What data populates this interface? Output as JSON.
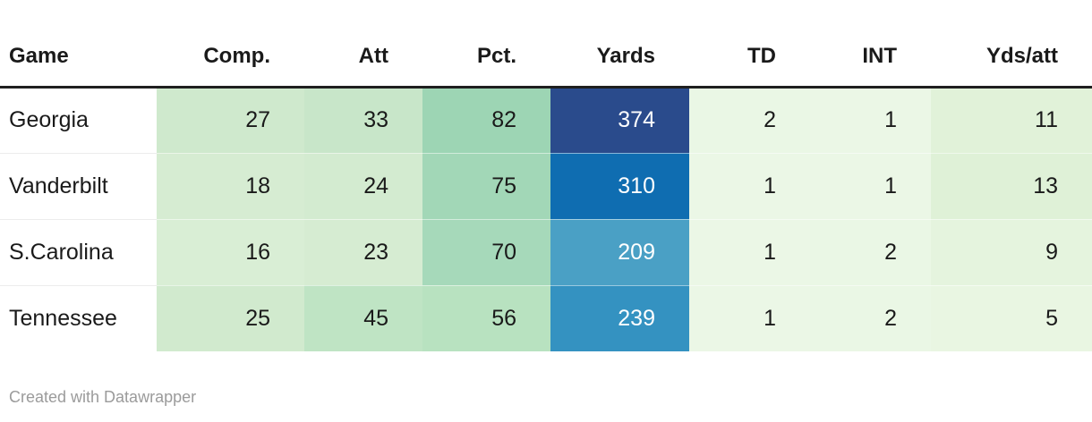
{
  "chart_data": {
    "type": "table",
    "title": "",
    "columns": [
      {
        "label": "Game"
      },
      {
        "label": "Comp."
      },
      {
        "label": "Att"
      },
      {
        "label": "Pct."
      },
      {
        "label": "Yards"
      },
      {
        "label": "TD"
      },
      {
        "label": "INT"
      },
      {
        "label": "Yds/att"
      }
    ],
    "rows": [
      {
        "label": "Georgia",
        "cells": [
          {
            "v": "27",
            "bg": "#cfe9cd",
            "fg": "#1a1a1a"
          },
          {
            "v": "33",
            "bg": "#c8e6c9",
            "fg": "#1a1a1a"
          },
          {
            "v": "82",
            "bg": "#9dd5b4",
            "fg": "#1a1a1a"
          },
          {
            "v": "374",
            "bg": "#2a4b8c",
            "fg": "#ffffff"
          },
          {
            "v": "2",
            "bg": "#eaf7e5",
            "fg": "#1a1a1a"
          },
          {
            "v": "1",
            "bg": "#ebf7e6",
            "fg": "#1a1a1a"
          },
          {
            "v": "11",
            "bg": "#e1f2d9",
            "fg": "#1a1a1a"
          }
        ]
      },
      {
        "label": "Vanderbilt",
        "cells": [
          {
            "v": "18",
            "bg": "#d6ecd2",
            "fg": "#1a1a1a"
          },
          {
            "v": "24",
            "bg": "#d3ebd0",
            "fg": "#1a1a1a"
          },
          {
            "v": "75",
            "bg": "#a2d7b7",
            "fg": "#1a1a1a"
          },
          {
            "v": "310",
            "bg": "#0f6db1",
            "fg": "#ffffff"
          },
          {
            "v": "1",
            "bg": "#ebf7e6",
            "fg": "#1a1a1a"
          },
          {
            "v": "1",
            "bg": "#ebf7e6",
            "fg": "#1a1a1a"
          },
          {
            "v": "13",
            "bg": "#dff1d7",
            "fg": "#1a1a1a"
          }
        ]
      },
      {
        "label": "S.Carolina",
        "cells": [
          {
            "v": "16",
            "bg": "#d9eed5",
            "fg": "#1a1a1a"
          },
          {
            "v": "23",
            "bg": "#d6ecd2",
            "fg": "#1a1a1a"
          },
          {
            "v": "70",
            "bg": "#a6d9ba",
            "fg": "#1a1a1a"
          },
          {
            "v": "209",
            "bg": "#4aa0c5",
            "fg": "#ffffff"
          },
          {
            "v": "1",
            "bg": "#ebf7e6",
            "fg": "#1a1a1a"
          },
          {
            "v": "2",
            "bg": "#eaf7e5",
            "fg": "#1a1a1a"
          },
          {
            "v": "9",
            "bg": "#e5f4de",
            "fg": "#1a1a1a"
          }
        ]
      },
      {
        "label": "Tennessee",
        "cells": [
          {
            "v": "25",
            "bg": "#d1eace",
            "fg": "#1a1a1a"
          },
          {
            "v": "45",
            "bg": "#bfe4c4",
            "fg": "#1a1a1a"
          },
          {
            "v": "56",
            "bg": "#b8e2c0",
            "fg": "#1a1a1a"
          },
          {
            "v": "239",
            "bg": "#3492c1",
            "fg": "#ffffff"
          },
          {
            "v": "1",
            "bg": "#ebf7e6",
            "fg": "#1a1a1a"
          },
          {
            "v": "2",
            "bg": "#eaf7e5",
            "fg": "#1a1a1a"
          },
          {
            "v": "5",
            "bg": "#e9f6e2",
            "fg": "#1a1a1a"
          }
        ]
      }
    ],
    "legend_position": "none",
    "grid": "row-separators",
    "colors": {
      "header_rule": "#1f1f1f",
      "row_separator": "#ececec",
      "credit_text": "#9b9b9b",
      "scale_low_green": "#ebf7e6",
      "scale_mid_green": "#9dd5b4",
      "scale_high_blue": "#2a4b8c"
    }
  },
  "footer": {
    "credit": "Created with Datawrapper"
  }
}
